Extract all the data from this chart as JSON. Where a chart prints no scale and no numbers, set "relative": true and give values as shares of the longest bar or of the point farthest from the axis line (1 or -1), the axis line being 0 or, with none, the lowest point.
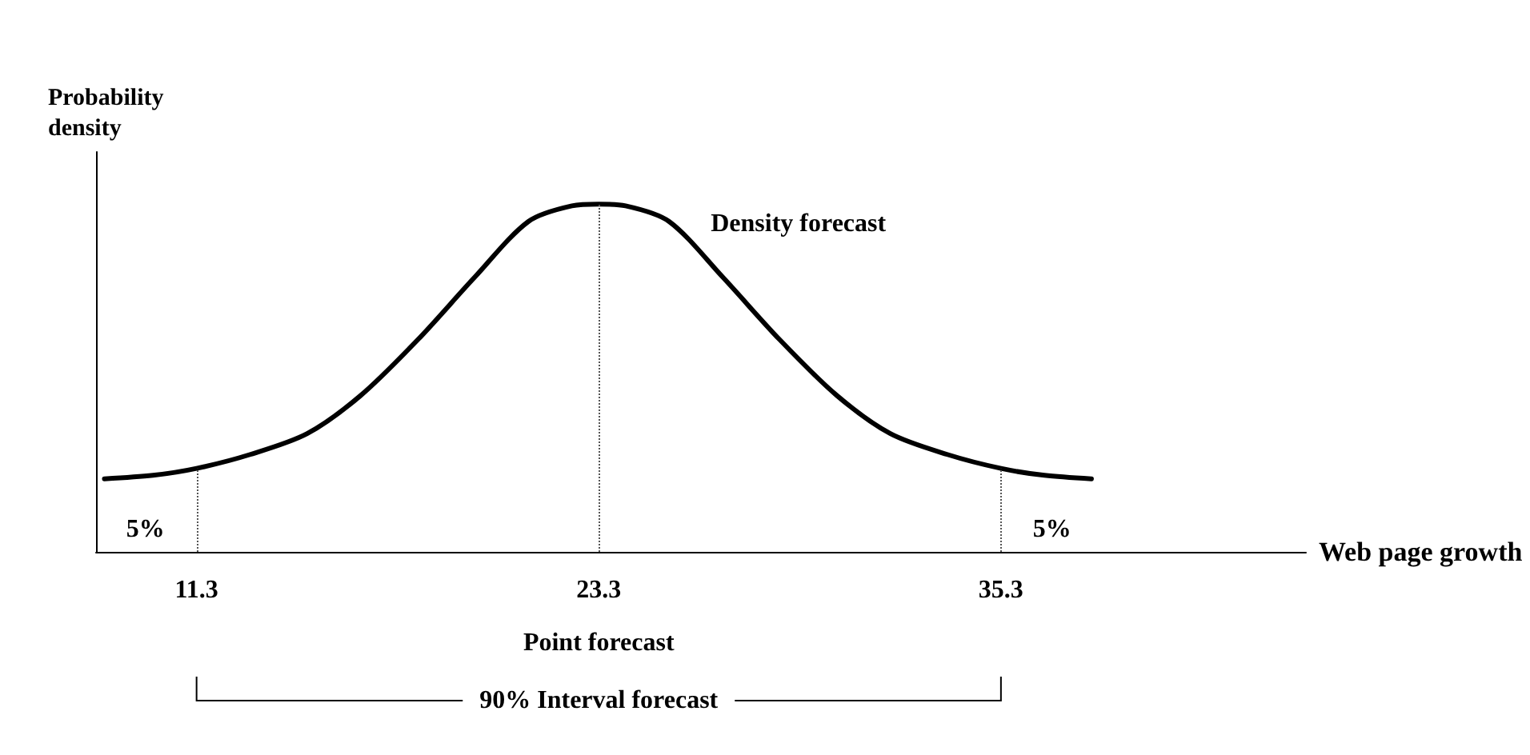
{
  "chart_data": {
    "type": "line",
    "relative": true,
    "xlabel": "Web page growth",
    "ylabel": "Probability density",
    "x": [
      8.55,
      10.0,
      11.3,
      12.9,
      14.6,
      16.2,
      17.9,
      19.6,
      21.2,
      22.5,
      23.3,
      24.1,
      25.4,
      27.0,
      28.7,
      30.4,
      32.0,
      33.7,
      35.3,
      36.6,
      38.0
    ],
    "series": [
      {
        "color": "#000000",
        "values": [
          0.21,
          0.22,
          0.24,
          0.28,
          0.34,
          0.45,
          0.61,
          0.79,
          0.95,
          0.995,
          1,
          0.995,
          0.95,
          0.79,
          0.61,
          0.45,
          0.34,
          0.28,
          0.24,
          0.22,
          0.21
        ]
      }
    ],
    "xlim": [
      8.3,
      44.4
    ],
    "xticks": [
      11.3,
      23.3,
      35.3
    ],
    "ref_lines": [
      {
        "axis": "x",
        "value": 11.3,
        "line_style": "dotted"
      },
      {
        "axis": "x",
        "value": 23.3,
        "line_style": "dotted"
      },
      {
        "axis": "x",
        "value": 35.3,
        "line_style": "dotted"
      }
    ],
    "annotations": [
      "Density forecast",
      "5%",
      "5%",
      "Point forecast",
      "90% Interval forecast"
    ],
    "grid": false,
    "marker": "none",
    "line_style": "solid"
  }
}
